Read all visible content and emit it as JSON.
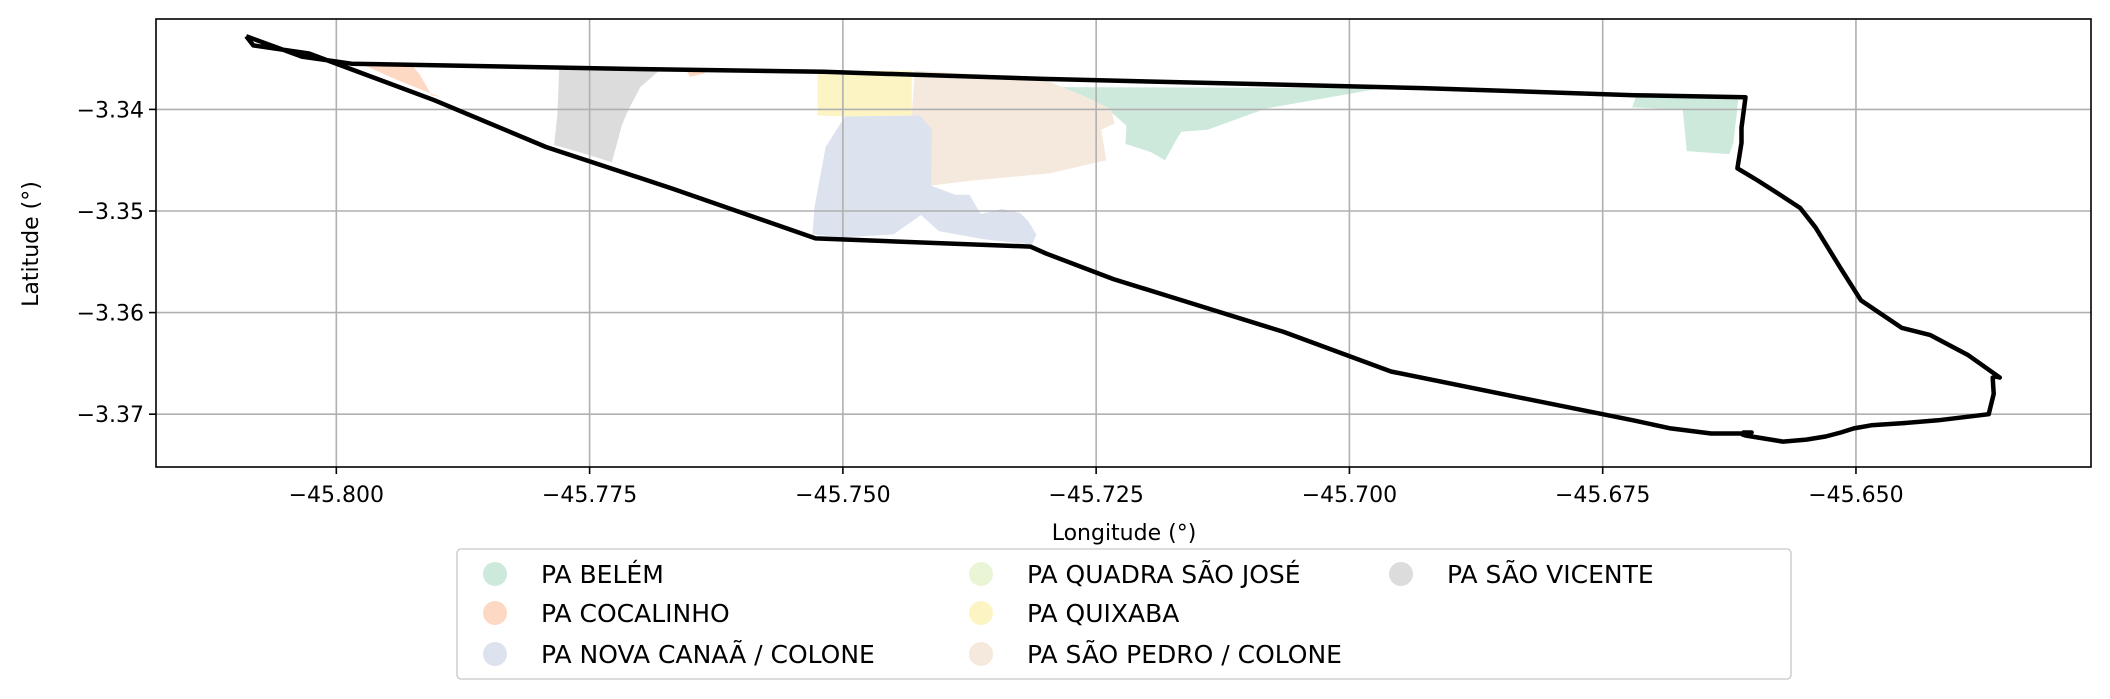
{
  "chart_data": {
    "type": "map",
    "xlabel": "Longitude (°)",
    "ylabel": "Latitude (°)",
    "xlim": [
      -45.8178,
      -45.6268
    ],
    "ylim": [
      -3.3752,
      -3.3311
    ],
    "xticks": [
      -45.8,
      -45.775,
      -45.75,
      -45.725,
      -45.7,
      -45.675,
      -45.65
    ],
    "xtick_labels": [
      "−45.800",
      "−45.775",
      "−45.750",
      "−45.725",
      "−45.700",
      "−45.675",
      "−45.650"
    ],
    "yticks": [
      -3.34,
      -3.35,
      -3.36,
      -3.37
    ],
    "ytick_labels": [
      "−3.34",
      "−3.35",
      "−3.36",
      "−3.37"
    ],
    "grid": true,
    "legend_position": "below",
    "legend": [
      {
        "label": "PA BELÉM",
        "color": "#cce9db"
      },
      {
        "label": "PA COCALINHO",
        "color": "#fdd9c3"
      },
      {
        "label": "PA NOVA CANAÃ / COLONE",
        "color": "#dde2ef"
      },
      {
        "label": "PA QUADRA SÃO JOSÉ",
        "color": "#eaf5d6"
      },
      {
        "label": "PA QUIXABA",
        "color": "#fdf4c4"
      },
      {
        "label": "PA SÃO PEDRO / COLONE",
        "color": "#f4e9dc"
      },
      {
        "label": "PA SÃO VICENTE",
        "color": "#dcdcdc"
      }
    ],
    "boundary": [
      [
        -45.8089,
        -3.3328
      ],
      [
        -45.8082,
        -3.3337
      ],
      [
        -45.8027,
        -3.3345
      ],
      [
        -45.7903,
        -3.3391
      ],
      [
        -45.7793,
        -3.3437
      ],
      [
        -45.7668,
        -3.3478
      ],
      [
        -45.7527,
        -3.3527
      ],
      [
        -45.7315,
        -3.3535
      ],
      [
        -45.7299,
        -3.3542
      ],
      [
        -45.7233,
        -3.3567
      ],
      [
        -45.7162,
        -3.3589
      ],
      [
        -45.7065,
        -3.3619
      ],
      [
        -45.6959,
        -3.3658
      ],
      [
        -45.683,
        -3.3684
      ],
      [
        -45.672,
        -3.3706
      ],
      [
        -45.6683,
        -3.3714
      ],
      [
        -45.6643,
        -3.3719
      ],
      [
        -45.6606,
        -3.3719
      ],
      [
        -45.6603,
        -3.3718
      ],
      [
        -45.6611,
        -3.3718
      ],
      [
        -45.6612,
        -3.372
      ],
      [
        -45.6609,
        -3.3721
      ],
      [
        -45.6572,
        -3.3727
      ],
      [
        -45.6549,
        -3.3725
      ],
      [
        -45.653,
        -3.3722
      ],
      [
        -45.6515,
        -3.3718
      ],
      [
        -45.6502,
        -3.3714
      ],
      [
        -45.6485,
        -3.3711
      ],
      [
        -45.6455,
        -3.3709
      ],
      [
        -45.6419,
        -3.3706
      ],
      [
        -45.6377,
        -3.3701
      ],
      [
        -45.6369,
        -3.37
      ],
      [
        -45.6364,
        -3.368
      ],
      [
        -45.6365,
        -3.3664
      ],
      [
        -45.6362,
        -3.3663
      ],
      [
        -45.6358,
        -3.3664
      ],
      [
        -45.6389,
        -3.3642
      ],
      [
        -45.6427,
        -3.3622
      ],
      [
        -45.6455,
        -3.3615
      ],
      [
        -45.6495,
        -3.3588
      ],
      [
        -45.6516,
        -3.3555
      ],
      [
        -45.654,
        -3.3516
      ],
      [
        -45.6555,
        -3.3497
      ],
      [
        -45.6578,
        -3.3482
      ],
      [
        -45.6597,
        -3.347
      ],
      [
        -45.6617,
        -3.3458
      ],
      [
        -45.6613,
        -3.3433
      ],
      [
        -45.6613,
        -3.3418
      ],
      [
        -45.6609,
        -3.3388
      ],
      [
        -45.6719,
        -3.3386
      ],
      [
        -45.6928,
        -3.3379
      ],
      [
        -45.7302,
        -3.337
      ],
      [
        -45.7519,
        -3.3363
      ],
      [
        -45.7719,
        -3.336
      ],
      [
        -45.7985,
        -3.3355
      ],
      [
        -45.8034,
        -3.3348
      ],
      [
        -45.8089,
        -3.3328
      ]
    ],
    "regions": [
      {
        "name": "PA BELÉM",
        "coords": [
          [
            -45.729,
            -3.3378
          ],
          [
            -45.6968,
            -3.3379
          ],
          [
            -45.7082,
            -3.3399
          ],
          [
            -45.714,
            -3.342
          ],
          [
            -45.7166,
            -3.3422
          ],
          [
            -45.7172,
            -3.3432
          ],
          [
            -45.7182,
            -3.345
          ],
          [
            -45.7196,
            -3.3442
          ],
          [
            -45.7221,
            -3.3434
          ],
          [
            -45.722,
            -3.3416
          ],
          [
            -45.7236,
            -3.3402
          ],
          [
            -45.7263,
            -3.3394
          ]
        ]
      },
      {
        "name": "PA BELÉM",
        "coords": [
          [
            -45.6717,
            -3.3387
          ],
          [
            -45.6616,
            -3.3389
          ],
          [
            -45.6621,
            -3.3433
          ],
          [
            -45.6625,
            -3.3444
          ],
          [
            -45.6667,
            -3.3441
          ],
          [
            -45.6671,
            -3.34
          ],
          [
            -45.6721,
            -3.3398
          ]
        ]
      },
      {
        "name": "PA COCALINHO",
        "coords": [
          [
            -45.7978,
            -3.3354
          ],
          [
            -45.7926,
            -3.3356
          ],
          [
            -45.7918,
            -3.3365
          ],
          [
            -45.7906,
            -3.3386
          ],
          [
            -45.7897,
            -3.3388
          ],
          [
            -45.794,
            -3.3371
          ]
        ]
      },
      {
        "name": "PA COCALINHO",
        "coords": [
          [
            -45.7656,
            -3.3359
          ],
          [
            -45.763,
            -3.336
          ],
          [
            -45.7638,
            -3.3365
          ],
          [
            -45.7651,
            -3.3368
          ]
        ]
      },
      {
        "name": "PA SÃO VICENTE",
        "coords": [
          [
            -45.778,
            -3.3358
          ],
          [
            -45.7678,
            -3.3359
          ],
          [
            -45.77,
            -3.3378
          ],
          [
            -45.7712,
            -3.3401
          ],
          [
            -45.7718,
            -3.3415
          ],
          [
            -45.7728,
            -3.3452
          ],
          [
            -45.776,
            -3.3442
          ],
          [
            -45.7785,
            -3.3435
          ],
          [
            -45.7782,
            -3.3407
          ],
          [
            -45.7781,
            -3.3385
          ]
        ]
      },
      {
        "name": "PA QUIXABA",
        "coords": [
          [
            -45.7525,
            -3.3362
          ],
          [
            -45.7432,
            -3.3362
          ],
          [
            -45.7432,
            -3.3377
          ],
          [
            -45.7432,
            -3.3406
          ],
          [
            -45.7495,
            -3.3407
          ],
          [
            -45.7525,
            -3.3406
          ]
        ]
      },
      {
        "name": "PA SÃO PEDRO / COLONE",
        "coords": [
          [
            -45.7429,
            -3.3362
          ],
          [
            -45.7305,
            -3.3369
          ],
          [
            -45.7257,
            -3.3389
          ],
          [
            -45.7235,
            -3.34
          ],
          [
            -45.7232,
            -3.3414
          ],
          [
            -45.7245,
            -3.342
          ],
          [
            -45.724,
            -3.345
          ],
          [
            -45.7296,
            -3.3463
          ],
          [
            -45.7372,
            -3.347
          ],
          [
            -45.7413,
            -3.3475
          ],
          [
            -45.7418,
            -3.3455
          ],
          [
            -45.7424,
            -3.3406
          ],
          [
            -45.7432,
            -3.3406
          ]
        ]
      },
      {
        "name": "PA NOVA CANAÃ / COLONE",
        "coords": [
          [
            -45.7498,
            -3.3407
          ],
          [
            -45.7424,
            -3.3406
          ],
          [
            -45.7412,
            -3.342
          ],
          [
            -45.7413,
            -3.3475
          ],
          [
            -45.7389,
            -3.3484
          ],
          [
            -45.7375,
            -3.3484
          ],
          [
            -45.7364,
            -3.3503
          ],
          [
            -45.7343,
            -3.3498
          ],
          [
            -45.7325,
            -3.3502
          ],
          [
            -45.7317,
            -3.351
          ],
          [
            -45.7309,
            -3.3523
          ],
          [
            -45.7313,
            -3.3533
          ],
          [
            -45.736,
            -3.3528
          ],
          [
            -45.7405,
            -3.352
          ],
          [
            -45.7423,
            -3.3504
          ],
          [
            -45.745,
            -3.3523
          ],
          [
            -45.75,
            -3.3526
          ],
          [
            -45.753,
            -3.3523
          ],
          [
            -45.7528,
            -3.3496
          ],
          [
            -45.7517,
            -3.3437
          ]
        ]
      }
    ]
  }
}
